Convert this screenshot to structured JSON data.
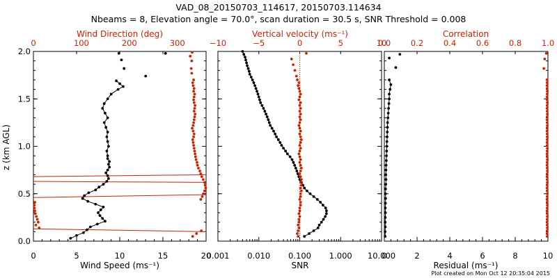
{
  "colors": {
    "black": "#000000",
    "red": "#cc2200",
    "background": "#ffffff"
  },
  "header": {
    "title_line1": "VAD_08_20150703_114617, 20150703.114634",
    "title_line2": "Nbeams = 8, Elevation angle = 70.0°, scan duration = 30.5 s, SNR Threshold = 0.008"
  },
  "footer": {
    "created": "Plot created on Mon Oct 12 20:35:04 2015"
  },
  "chart_data": [
    {
      "type": "scatter",
      "panel": "wind",
      "ylabel": "z (km AGL)",
      "ylim": [
        0,
        2
      ],
      "yticks": [
        "0.0",
        "0.5",
        "1.0",
        "1.5",
        "2.0"
      ],
      "yticks_values": [
        0,
        0.5,
        1.0,
        1.5,
        2.0
      ],
      "xlabel": "Wind Speed (ms⁻¹)",
      "xlim": [
        0,
        20
      ],
      "xticks": [
        "0",
        "5",
        "10",
        "15",
        "20"
      ],
      "xticks_values": [
        0,
        5,
        10,
        15,
        20
      ],
      "x2label": "Wind Direction (deg)",
      "x2lim": [
        0,
        360
      ],
      "x2ticks": [
        "0",
        "100",
        "200",
        "300"
      ],
      "x2ticks_values": [
        0,
        100,
        200,
        300
      ],
      "series": [
        {
          "axis": "bottom",
          "color": "#000000",
          "line": true,
          "z": [
            0.03,
            0.06,
            0.09,
            0.12,
            0.15,
            0.18,
            0.21,
            0.24,
            0.27,
            0.3,
            0.33,
            0.36,
            0.39,
            0.42,
            0.45,
            0.48,
            0.51,
            0.54,
            0.57,
            0.6,
            0.63,
            0.66,
            0.69,
            0.72,
            0.75,
            0.78,
            0.81,
            0.84,
            0.87,
            0.9,
            0.95,
            1.0,
            1.05,
            1.1,
            1.15,
            1.2,
            1.25,
            1.3,
            1.35,
            1.4,
            1.45,
            1.5,
            1.55,
            1.6,
            1.63,
            1.66,
            1.69
          ],
          "x": [
            4.3,
            5.0,
            5.8,
            6.2,
            6.6,
            7.4,
            8.3,
            8.0,
            7.7,
            7.5,
            7.8,
            8.1,
            7.2,
            6.3,
            5.7,
            5.9,
            6.4,
            7.2,
            7.6,
            8.1,
            8.5,
            8.7,
            8.6,
            8.4,
            8.6,
            8.8,
            8.7,
            8.8,
            8.6,
            8.6,
            8.5,
            8.7,
            8.6,
            8.5,
            8.6,
            8.4,
            8.2,
            8.6,
            8.3,
            8.0,
            8.2,
            8.6,
            9.0,
            9.8,
            10.4,
            10.0,
            9.6
          ]
        },
        {
          "axis": "bottom",
          "color": "#000000",
          "line": false,
          "z": [
            1.74,
            1.82,
            1.91,
            1.98,
            1.98
          ],
          "x": [
            13.0,
            10.5,
            10.2,
            9.9,
            15.3
          ]
        },
        {
          "axis": "top",
          "color": "#cc2200",
          "line": false,
          "z": [
            0.05,
            0.08,
            0.11,
            0.14,
            0.17,
            0.2,
            0.23,
            0.26,
            0.29,
            0.32,
            0.35,
            0.38,
            0.41,
            0.44,
            0.47,
            0.5,
            0.53,
            0.56,
            0.59,
            0.62,
            0.65,
            0.68,
            0.71,
            0.74,
            0.77,
            0.8,
            0.83,
            0.86,
            0.89,
            0.92,
            0.95,
            0.98,
            1.01,
            1.04,
            1.07,
            1.1,
            1.13,
            1.16,
            1.19,
            1.22,
            1.25,
            1.28,
            1.31,
            1.34,
            1.37,
            1.4,
            1.43,
            1.46,
            1.49,
            1.52,
            1.55,
            1.58,
            1.61,
            1.64,
            1.67,
            1.7,
            1.77,
            1.82,
            1.9,
            1.95,
            1.99
          ],
          "x": [
            332,
            340,
            350,
            12,
            5,
            10,
            8,
            6,
            4,
            3,
            2,
            2,
            3,
            349,
            352,
            355,
            357,
            359,
            358,
            357,
            354,
            351,
            349,
            347,
            344,
            342,
            341,
            339,
            338,
            337,
            336,
            335,
            334,
            333,
            332,
            334,
            335,
            333,
            331,
            333,
            334,
            335,
            336,
            337,
            335,
            336,
            337,
            335,
            334,
            335,
            336,
            334,
            335,
            333,
            332,
            334,
            330,
            329,
            330,
            327,
            331
          ]
        }
      ],
      "wrap_lines": [
        {
          "z_left": 0.13,
          "z_right": 0.1
        },
        {
          "z_left": 0.46,
          "z_right": 0.49
        },
        {
          "z_left": 0.63,
          "z_right": 0.62
        },
        {
          "z_left": 0.68,
          "z_right": 0.7
        }
      ]
    },
    {
      "type": "scatter",
      "panel": "velocity",
      "xlabel": "SNR",
      "xscale": "log",
      "xlim": [
        0.001,
        10
      ],
      "xticks": [
        "0.001",
        "0.010",
        "0.100",
        "1.000",
        "10.000"
      ],
      "xticks_values": [
        0.001,
        0.01,
        0.1,
        1,
        10
      ],
      "x2label": "Vertical velocity (ms⁻¹)",
      "x2lim": [
        -10,
        10
      ],
      "x2ticks": [
        "−10",
        "−5",
        "0",
        "5",
        "10"
      ],
      "x2ticks_values": [
        -10,
        -5,
        0,
        5,
        10
      ],
      "series": [
        {
          "axis": "bottom",
          "color": "#000000",
          "line": true,
          "z": [
            0.05,
            0.08,
            0.11,
            0.14,
            0.17,
            0.2,
            0.23,
            0.26,
            0.29,
            0.32,
            0.35,
            0.38,
            0.41,
            0.44,
            0.47,
            0.5,
            0.53,
            0.56,
            0.59,
            0.62,
            0.65,
            0.68,
            0.71,
            0.74,
            0.77,
            0.8,
            0.83,
            0.86,
            0.89,
            0.92,
            0.95,
            0.98,
            1.01,
            1.04,
            1.07,
            1.1,
            1.13,
            1.16,
            1.19,
            1.22,
            1.25,
            1.28,
            1.31,
            1.34,
            1.37,
            1.4,
            1.43,
            1.46,
            1.49,
            1.52,
            1.55,
            1.58,
            1.61,
            1.64,
            1.67,
            1.7,
            1.73,
            1.76,
            1.79,
            1.82,
            1.85,
            1.88,
            1.91,
            1.94,
            1.97,
            2.0
          ],
          "x": [
            0.13,
            0.17,
            0.22,
            0.28,
            0.3,
            0.34,
            0.38,
            0.42,
            0.45,
            0.45,
            0.43,
            0.37,
            0.32,
            0.27,
            0.22,
            0.18,
            0.15,
            0.13,
            0.12,
            0.11,
            0.1,
            0.095,
            0.09,
            0.085,
            0.08,
            0.075,
            0.07,
            0.065,
            0.058,
            0.05,
            0.045,
            0.04,
            0.036,
            0.033,
            0.03,
            0.027,
            0.025,
            0.023,
            0.021,
            0.019,
            0.018,
            0.017,
            0.016,
            0.015,
            0.014,
            0.013,
            0.012,
            0.011,
            0.0105,
            0.01,
            0.0095,
            0.009,
            0.0085,
            0.008,
            0.0075,
            0.007,
            0.0065,
            0.006,
            0.0058,
            0.0055,
            0.0052,
            0.005,
            0.0048,
            0.0046,
            0.0043,
            0.004
          ]
        },
        {
          "axis": "top",
          "color": "#cc2200",
          "line": false,
          "z": [
            0.05,
            0.08,
            0.11,
            0.14,
            0.17,
            0.2,
            0.23,
            0.26,
            0.29,
            0.32,
            0.35,
            0.38,
            0.41,
            0.44,
            0.47,
            0.5,
            0.53,
            0.56,
            0.59,
            0.62,
            0.65,
            0.68,
            0.71,
            0.74,
            0.77,
            0.8,
            0.83,
            0.86,
            0.89,
            0.92,
            0.95,
            0.98,
            1.01,
            1.04,
            1.07,
            1.1,
            1.13,
            1.16,
            1.19,
            1.22,
            1.25,
            1.28,
            1.31,
            1.34,
            1.37,
            1.4,
            1.43,
            1.46,
            1.49,
            1.52,
            1.55,
            1.58,
            1.61,
            1.64,
            1.67,
            1.7,
            1.74,
            1.8,
            1.86,
            1.92,
            1.98
          ],
          "x": [
            -0.2,
            -0.3,
            -0.2,
            -0.1,
            -0.2,
            -0.1,
            -0.1,
            0.0,
            -0.1,
            0.0,
            0.0,
            0.1,
            0.1,
            0.0,
            0.1,
            0.1,
            0.2,
            0.1,
            0.2,
            0.1,
            0.2,
            0.1,
            0.0,
            0.1,
            0.2,
            0.1,
            0.0,
            0.1,
            0.0,
            -0.1,
            0.0,
            0.1,
            0.0,
            0.1,
            0.2,
            0.1,
            0.0,
            0.1,
            0.0,
            -0.1,
            0.0,
            0.1,
            0.0,
            0.1,
            0.0,
            0.1,
            0.0,
            0.1,
            -0.1,
            0.0,
            0.1,
            0.0,
            -0.1,
            -0.2,
            -0.1,
            -0.3,
            -0.4,
            -0.6,
            -0.8,
            -1.0,
            0.8
          ]
        }
      ]
    },
    {
      "type": "scatter",
      "panel": "residual",
      "xlabel": "Residual (ms⁻¹)",
      "xlim": [
        0,
        10
      ],
      "xticks": [
        "0",
        "2",
        "4",
        "6",
        "8",
        "10"
      ],
      "xticks_values": [
        0,
        2,
        4,
        6,
        8,
        10
      ],
      "x2label": "Correlation",
      "x2lim": [
        0,
        1
      ],
      "x2ticks": [
        "0.0",
        "0.2",
        "0.4",
        "0.6",
        "0.8",
        "1.0"
      ],
      "x2ticks_values": [
        0,
        0.2,
        0.4,
        0.6,
        0.8,
        1.0
      ],
      "series": [
        {
          "axis": "bottom",
          "color": "#000000",
          "line": true,
          "z": [
            0.05,
            0.1,
            0.15,
            0.2,
            0.25,
            0.3,
            0.35,
            0.4,
            0.45,
            0.5,
            0.55,
            0.6,
            0.65,
            0.7,
            0.75,
            0.8,
            0.85,
            0.9,
            0.95,
            1.0,
            1.05,
            1.1,
            1.15,
            1.2,
            1.25,
            1.3,
            1.35,
            1.4,
            1.45,
            1.5,
            1.55,
            1.6,
            1.65,
            1.7
          ],
          "x": [
            0.05,
            0.05,
            0.06,
            0.05,
            0.06,
            0.07,
            0.06,
            0.07,
            0.08,
            0.07,
            0.08,
            0.09,
            0.1,
            0.09,
            0.1,
            0.11,
            0.12,
            0.13,
            0.14,
            0.15,
            0.16,
            0.17,
            0.18,
            0.19,
            0.2,
            0.22,
            0.24,
            0.26,
            0.28,
            0.3,
            0.3,
            0.35,
            0.4,
            0.3
          ]
        },
        {
          "axis": "bottom",
          "color": "#000000",
          "line": false,
          "z": [
            1.83,
            1.93,
            1.97
          ],
          "x": [
            0.7,
            0.3,
            0.95
          ]
        },
        {
          "axis": "top",
          "color": "#cc2200",
          "line": false,
          "z": [
            0.05,
            0.08,
            0.11,
            0.14,
            0.17,
            0.2,
            0.23,
            0.26,
            0.29,
            0.32,
            0.35,
            0.38,
            0.41,
            0.44,
            0.47,
            0.5,
            0.53,
            0.56,
            0.59,
            0.62,
            0.65,
            0.68,
            0.71,
            0.74,
            0.77,
            0.8,
            0.83,
            0.86,
            0.89,
            0.92,
            0.95,
            0.98,
            1.01,
            1.04,
            1.07,
            1.1,
            1.13,
            1.16,
            1.19,
            1.22,
            1.25,
            1.28,
            1.31,
            1.34,
            1.37,
            1.4,
            1.43,
            1.46,
            1.49,
            1.52,
            1.55,
            1.58,
            1.61,
            1.64,
            1.67,
            1.7,
            1.82,
            1.92,
            1.98
          ],
          "x": [
            0.995,
            0.994,
            0.995,
            0.996,
            0.995,
            0.994,
            0.995,
            0.996,
            0.995,
            0.994,
            0.995,
            0.996,
            0.995,
            0.994,
            0.995,
            0.996,
            0.995,
            0.994,
            0.995,
            0.996,
            0.995,
            0.994,
            0.995,
            0.996,
            0.995,
            0.994,
            0.995,
            0.996,
            0.995,
            0.994,
            0.995,
            0.996,
            0.995,
            0.994,
            0.995,
            0.996,
            0.995,
            0.994,
            0.995,
            0.996,
            0.995,
            0.994,
            0.995,
            0.996,
            0.995,
            0.994,
            0.995,
            0.996,
            0.995,
            0.994,
            0.995,
            0.996,
            0.995,
            0.994,
            0.995,
            0.994,
            0.975,
            0.98,
            0.99
          ]
        }
      ]
    }
  ]
}
